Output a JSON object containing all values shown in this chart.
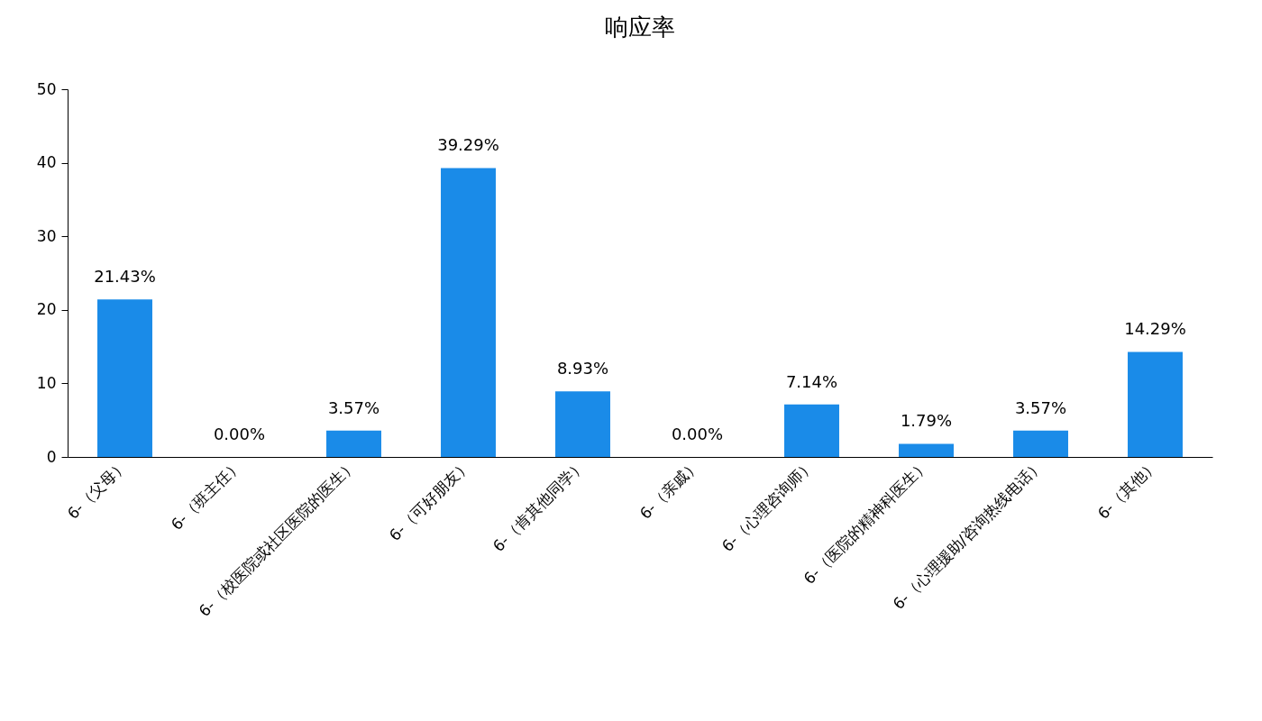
{
  "chart_data": {
    "type": "bar",
    "title": "响应率",
    "categories": [
      "6-（父母）",
      "6-（班主任）",
      "6-（校医院或社区医院的医生）",
      "6-（可好朋友）",
      "6-（肯其他同学）",
      "6-（亲戚）",
      "6-（心理咨询师）",
      "6-（医院的精神科医生）",
      "6-（心理援助/咨询热线电话）",
      "6-（其他）"
    ],
    "values": [
      21.43,
      0,
      3.57,
      39.29,
      8.93,
      0,
      7.14,
      1.79,
      3.57,
      14.29
    ],
    "value_labels": [
      "21.43%",
      "0.00%",
      "3.57%",
      "39.29%",
      "8.93%",
      "0.00%",
      "7.14%",
      "1.79%",
      "3.57%",
      "14.29%"
    ],
    "color": "#1a8be8",
    "ylim": [
      0,
      50
    ],
    "yticks": [
      0,
      10,
      20,
      30,
      40,
      50
    ],
    "grid": false
  }
}
